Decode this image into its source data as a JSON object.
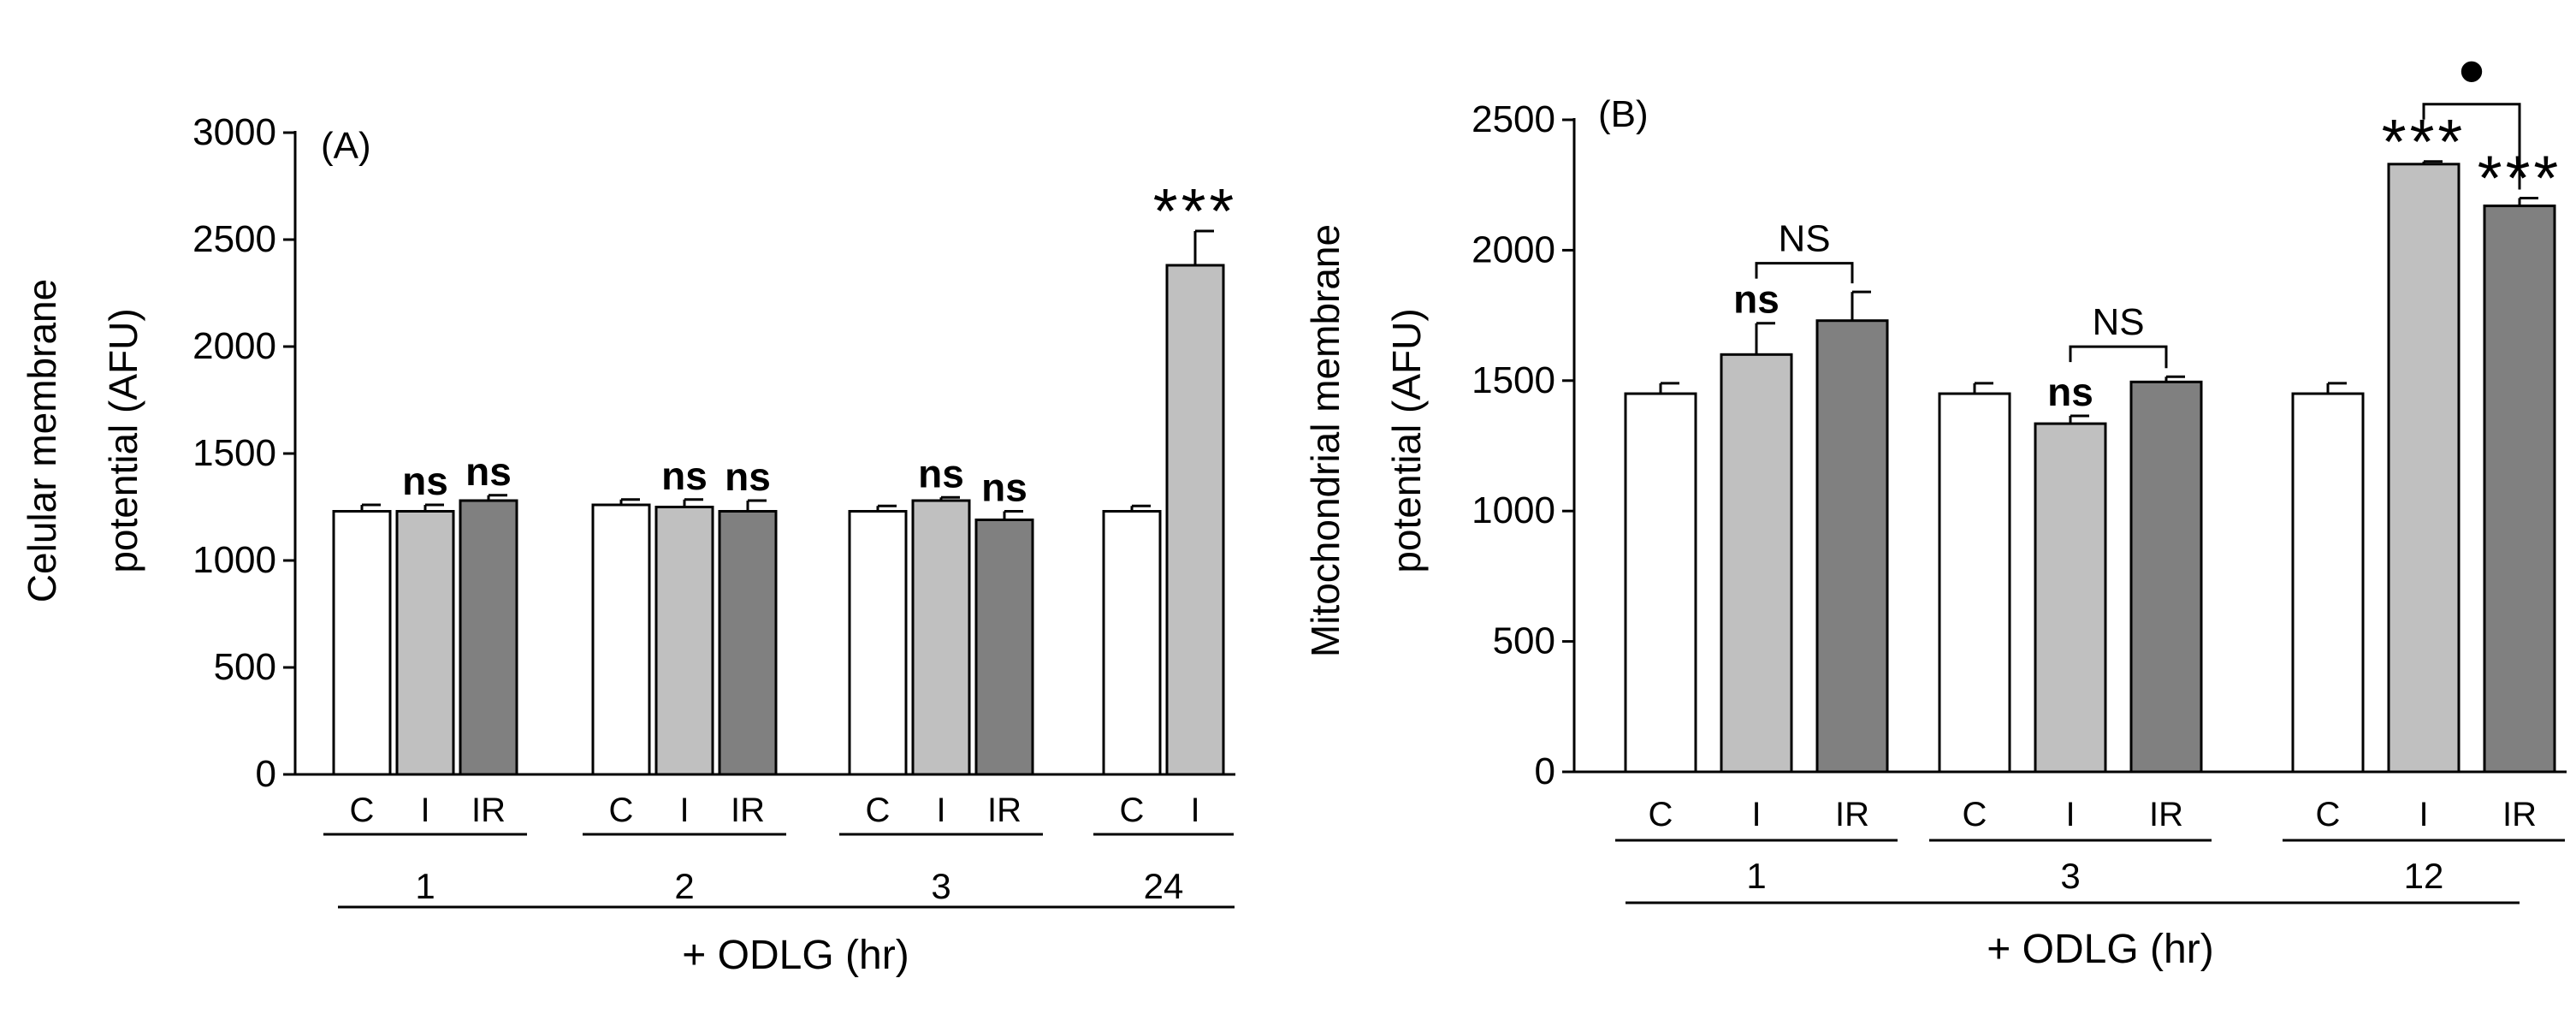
{
  "chart_data": [
    {
      "type": "bar",
      "panel_label": "(A)",
      "ylabel_lines": [
        "Celular membrane",
        "potential (AFU)"
      ],
      "xlabel": "+ ODLG (hr)",
      "ylim": [
        0,
        3000
      ],
      "yticks": [
        "0",
        "500",
        "1000",
        "1500",
        "2000",
        "2500",
        "3000"
      ],
      "groups": [
        {
          "label": "1",
          "bars": [
            {
              "cat": "C",
              "value": 1230,
              "err": 30,
              "annot": ""
            },
            {
              "cat": "I",
              "value": 1230,
              "err": 30,
              "annot": "ns"
            },
            {
              "cat": "IR",
              "value": 1280,
              "err": 25,
              "annot": "ns"
            }
          ]
        },
        {
          "label": "2",
          "bars": [
            {
              "cat": "C",
              "value": 1260,
              "err": 25,
              "annot": ""
            },
            {
              "cat": "I",
              "value": 1250,
              "err": 35,
              "annot": "ns"
            },
            {
              "cat": "IR",
              "value": 1230,
              "err": 50,
              "annot": "ns"
            }
          ]
        },
        {
          "label": "3",
          "bars": [
            {
              "cat": "C",
              "value": 1230,
              "err": 25,
              "annot": ""
            },
            {
              "cat": "I",
              "value": 1280,
              "err": 15,
              "annot": "ns"
            },
            {
              "cat": "IR",
              "value": 1190,
              "err": 40,
              "annot": "ns"
            }
          ]
        },
        {
          "label": "24",
          "bars": [
            {
              "cat": "C",
              "value": 1230,
              "err": 25,
              "annot": ""
            },
            {
              "cat": "I",
              "value": 2380,
              "err": 160,
              "annot": "***"
            }
          ]
        }
      ],
      "brackets": []
    },
    {
      "type": "bar",
      "panel_label": "(B)",
      "ylabel_lines": [
        "Mitochondrial membrane",
        "potential (AFU)"
      ],
      "xlabel": "+ ODLG (hr)",
      "ylim": [
        0,
        2500
      ],
      "yticks": [
        "0",
        "500",
        "1000",
        "1500",
        "2000",
        "2500"
      ],
      "groups": [
        {
          "label": "1",
          "bars": [
            {
              "cat": "C",
              "value": 1450,
              "err": 40,
              "annot": ""
            },
            {
              "cat": "I",
              "value": 1600,
              "err": 120,
              "annot": "ns"
            },
            {
              "cat": "IR",
              "value": 1730,
              "err": 110,
              "annot": ""
            }
          ]
        },
        {
          "label": "3",
          "bars": [
            {
              "cat": "C",
              "value": 1450,
              "err": 40,
              "annot": ""
            },
            {
              "cat": "I",
              "value": 1335,
              "err": 30,
              "annot": "ns"
            },
            {
              "cat": "IR",
              "value": 1495,
              "err": 20,
              "annot": ""
            }
          ]
        },
        {
          "label": "12",
          "bars": [
            {
              "cat": "C",
              "value": 1450,
              "err": 40,
              "annot": ""
            },
            {
              "cat": "I",
              "value": 2330,
              "err": 10,
              "annot": "***"
            },
            {
              "cat": "IR",
              "value": 2170,
              "err": 30,
              "annot": "***"
            }
          ]
        }
      ],
      "brackets": [
        {
          "group": 0,
          "from": 1,
          "to": 2,
          "label": "NS",
          "level": 1950
        },
        {
          "group": 1,
          "from": 1,
          "to": 2,
          "label": "NS",
          "level": 1630
        },
        {
          "group": 2,
          "from": 1,
          "to": 2,
          "label": "•",
          "level": 2560
        }
      ]
    }
  ],
  "colors": {
    "C": "#ffffff",
    "I": "#c0c0c0",
    "IR": "#808080",
    "ink": "#000000"
  }
}
